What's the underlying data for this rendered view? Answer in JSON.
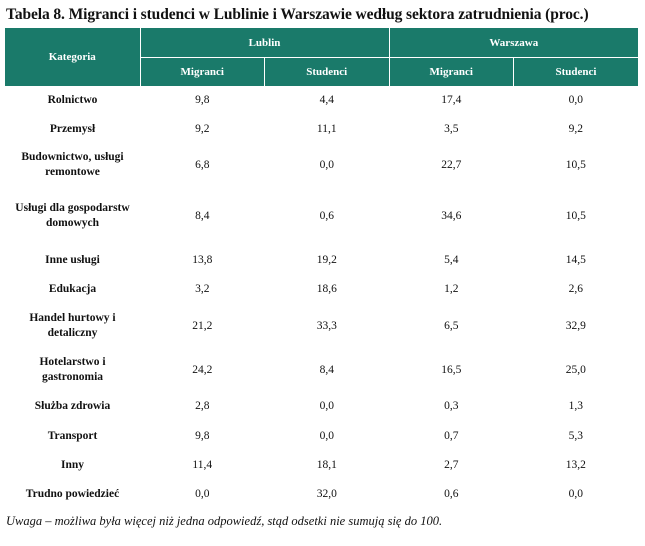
{
  "title": "Tabela 8. Migranci i studenci w Lublinie i Warszawie według sektora zatrudnienia (proc.)",
  "header": {
    "category": "Kategoria",
    "groups": [
      "Lublin",
      "Warszawa"
    ],
    "subs": [
      "Migranci",
      "Studenci",
      "Migranci",
      "Studenci"
    ]
  },
  "rows": [
    {
      "label": "Rolnictwo",
      "values": [
        "9,8",
        "4,4",
        "17,4",
        "0,0"
      ]
    },
    {
      "label": "Przemysł",
      "values": [
        "9,2",
        "11,1",
        "3,5",
        "9,2"
      ]
    },
    {
      "label": "Budownictwo, usługi remontowe",
      "values": [
        "6,8",
        "0,0",
        "22,7",
        "10,5"
      ]
    },
    {
      "label": "Usługi dla gospodarstw domowych",
      "values": [
        "8,4",
        "0,6",
        "34,6",
        "10,5"
      ]
    },
    {
      "label": "Inne usługi",
      "values": [
        "13,8",
        "19,2",
        "5,4",
        "14,5"
      ]
    },
    {
      "label": "Edukacja",
      "values": [
        "3,2",
        "18,6",
        "1,2",
        "2,6"
      ]
    },
    {
      "label": "Handel hurtowy i detaliczny",
      "values": [
        "21,2",
        "33,3",
        "6,5",
        "32,9"
      ]
    },
    {
      "label": "Hotelarstwo i gastronomia",
      "values": [
        "24,2",
        "8,4",
        "16,5",
        "25,0"
      ]
    },
    {
      "label": "Służba zdrowia",
      "values": [
        "2,8",
        "0,0",
        "0,3",
        "1,3"
      ]
    },
    {
      "label": "Transport",
      "values": [
        "9,8",
        "0,0",
        "0,7",
        "5,3"
      ]
    },
    {
      "label": "Inny",
      "values": [
        "11,4",
        "18,1",
        "2,7",
        "13,2"
      ]
    },
    {
      "label": "Trudno powiedzieć",
      "values": [
        "0,0",
        "32,0",
        "0,6",
        "0,0"
      ]
    }
  ],
  "note": "Uwaga – możliwa była więcej niż jedna odpowiedź, stąd odsetki nie sumują się do 100."
}
